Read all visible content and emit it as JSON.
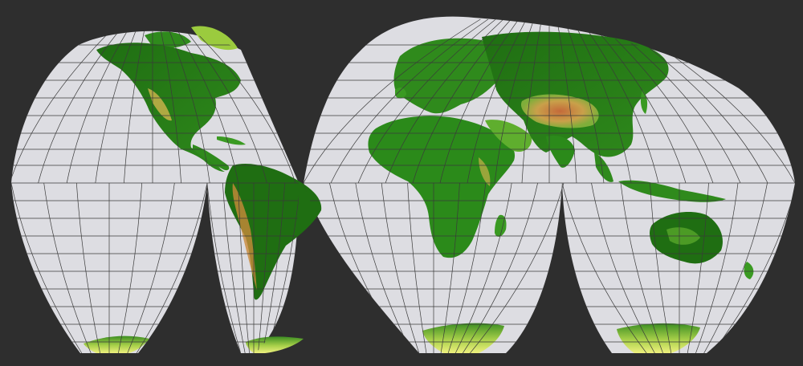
{
  "map": {
    "projection": "interrupted-goode-homolosine",
    "lobes": 4,
    "graticule_interval_deg": 15,
    "colors": {
      "background": "#2e2e2e",
      "ocean": "#dddde2",
      "graticule": "#3a3a3a",
      "lowland": "#1f6e12",
      "midland": "#5fae2e",
      "highland": "#c9b14a",
      "peak": "#c46a3a",
      "ice": "#e6ee7a"
    },
    "continents": [
      "north-america",
      "south-america",
      "greenland",
      "europe",
      "africa",
      "asia",
      "australia",
      "antarctica"
    ]
  }
}
